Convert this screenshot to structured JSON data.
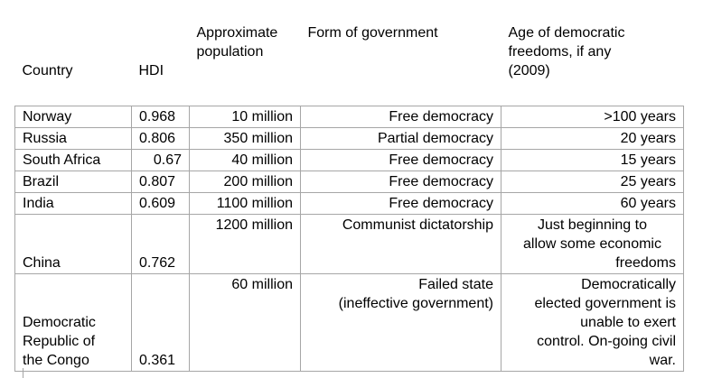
{
  "table": {
    "headers": {
      "country": "Country",
      "hdi": "HDI",
      "population_line1": "Approximate",
      "population_line2": "population",
      "government": "Form of government",
      "age_line1": "Age of democratic",
      "age_line2": "freedoms, if any",
      "age_line3": "(2009)"
    },
    "rows": [
      {
        "country": "Norway",
        "hdi": "0.968",
        "population": "10 million",
        "government": "Free democracy",
        "age": ">100 years"
      },
      {
        "country": "Russia",
        "hdi": "0.806",
        "population": "350 million",
        "government": "Partial democracy",
        "age": "20 years"
      },
      {
        "country": "South Africa",
        "hdi": "0.67",
        "population": "40 million",
        "government": "Free democracy",
        "age": "15 years"
      },
      {
        "country": "Brazil",
        "hdi": "0.807",
        "population": "200 million",
        "government": "Free democracy",
        "age": "25 years"
      },
      {
        "country": "India",
        "hdi": "0.609",
        "population": "1100 million",
        "government": "Free democracy",
        "age": "60 years"
      },
      {
        "country": "China",
        "hdi": "0.762",
        "population": "1200 million",
        "government": "Communist dictatorship",
        "age_lines": [
          "Just beginning to",
          "allow some economic",
          "freedoms"
        ]
      },
      {
        "country_lines": [
          "Democratic",
          "Republic of",
          "the Congo"
        ],
        "hdi": "0.361",
        "population": "60 million",
        "government_lines": [
          "Failed state",
          "(ineffective government)"
        ],
        "age_lines": [
          "Democratically",
          "elected government is",
          "unable to exert",
          "control. On-going civil",
          "war."
        ]
      }
    ]
  }
}
